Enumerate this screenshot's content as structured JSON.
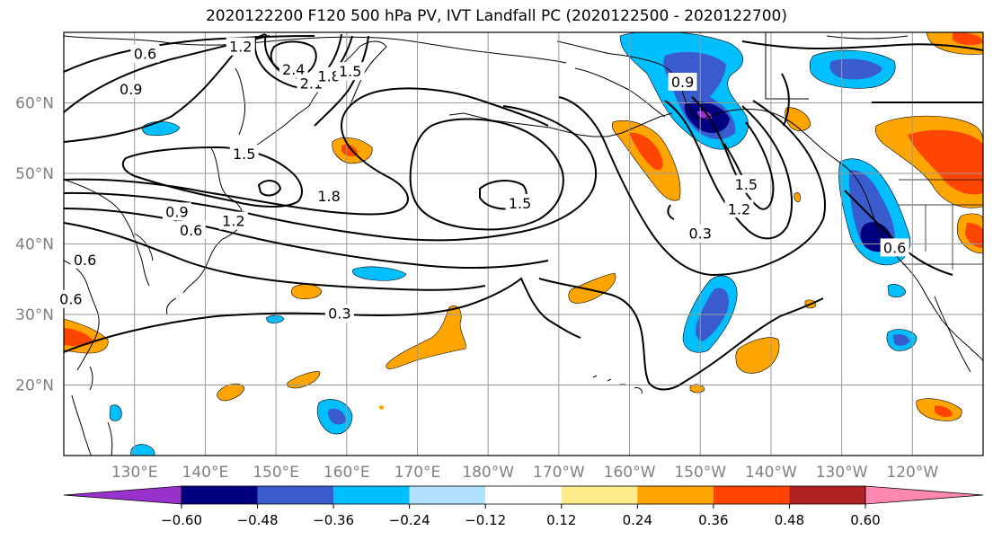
{
  "title": "2020122200 F120 500 hPa PV, IVT Landfall PC (2020122500 - 2020122700)",
  "map": {
    "lon_labels": [
      "130°E",
      "140°E",
      "150°E",
      "160°E",
      "170°E",
      "180°W",
      "170°W",
      "160°W",
      "150°W",
      "140°W",
      "130°W",
      "120°W"
    ],
    "lat_labels": [
      "20°N",
      "30°N",
      "40°N",
      "50°N",
      "60°N"
    ],
    "contour_labels": [
      {
        "text": "0.6",
        "lon": 131.5,
        "lat": 67.0
      },
      {
        "text": "0.9",
        "lon": 129.5,
        "lat": 62.0
      },
      {
        "text": "1.2",
        "lon": 145.0,
        "lat": 68.0
      },
      {
        "text": "2.4",
        "lon": 152.5,
        "lat": 64.8
      },
      {
        "text": "2.1",
        "lon": 155.0,
        "lat": 62.8
      },
      {
        "text": "1.8",
        "lon": 157.5,
        "lat": 63.8
      },
      {
        "text": "1.5",
        "lon": 160.5,
        "lat": 64.5
      },
      {
        "text": "1.5",
        "lon": 145.5,
        "lat": 52.8
      },
      {
        "text": "1.8",
        "lon": 157.5,
        "lat": 46.8
      },
      {
        "text": "0.9",
        "lon": 136.0,
        "lat": 44.6
      },
      {
        "text": "1.2",
        "lon": 144.0,
        "lat": 43.3
      },
      {
        "text": "0.6",
        "lon": 138.0,
        "lat": 42.0
      },
      {
        "text": "0.6",
        "lon": 123.0,
        "lat": 37.8
      },
      {
        "text": "0.6",
        "lon": 121.0,
        "lat": 32.2
      },
      {
        "text": "0.3",
        "lon": 159.0,
        "lat": 30.2
      },
      {
        "text": "1.5",
        "lon": 184.5,
        "lat": 45.8
      },
      {
        "text": "0.9",
        "lon": 207.5,
        "lat": 63.0
      },
      {
        "text": "1.5",
        "lon": 216.5,
        "lat": 48.5
      },
      {
        "text": "1.2",
        "lon": 215.5,
        "lat": 45.0
      },
      {
        "text": "0.3",
        "lon": 210.0,
        "lat": 41.5
      },
      {
        "text": "0.6",
        "lon": 237.5,
        "lat": 39.5
      }
    ]
  },
  "colorbar": {
    "ticks": [
      "-0.60",
      "-0.48",
      "-0.36",
      "-0.24",
      "-0.12",
      "0.12",
      "0.24",
      "0.36",
      "0.48",
      "0.60"
    ],
    "colors": [
      "#9932cc",
      "#000080",
      "#3a5bcd",
      "#00bfff",
      "#b0e0ff",
      "#ffffff",
      "#ffec8b",
      "#ffa500",
      "#ff4500",
      "#b22222",
      "#ff88b0"
    ]
  }
}
